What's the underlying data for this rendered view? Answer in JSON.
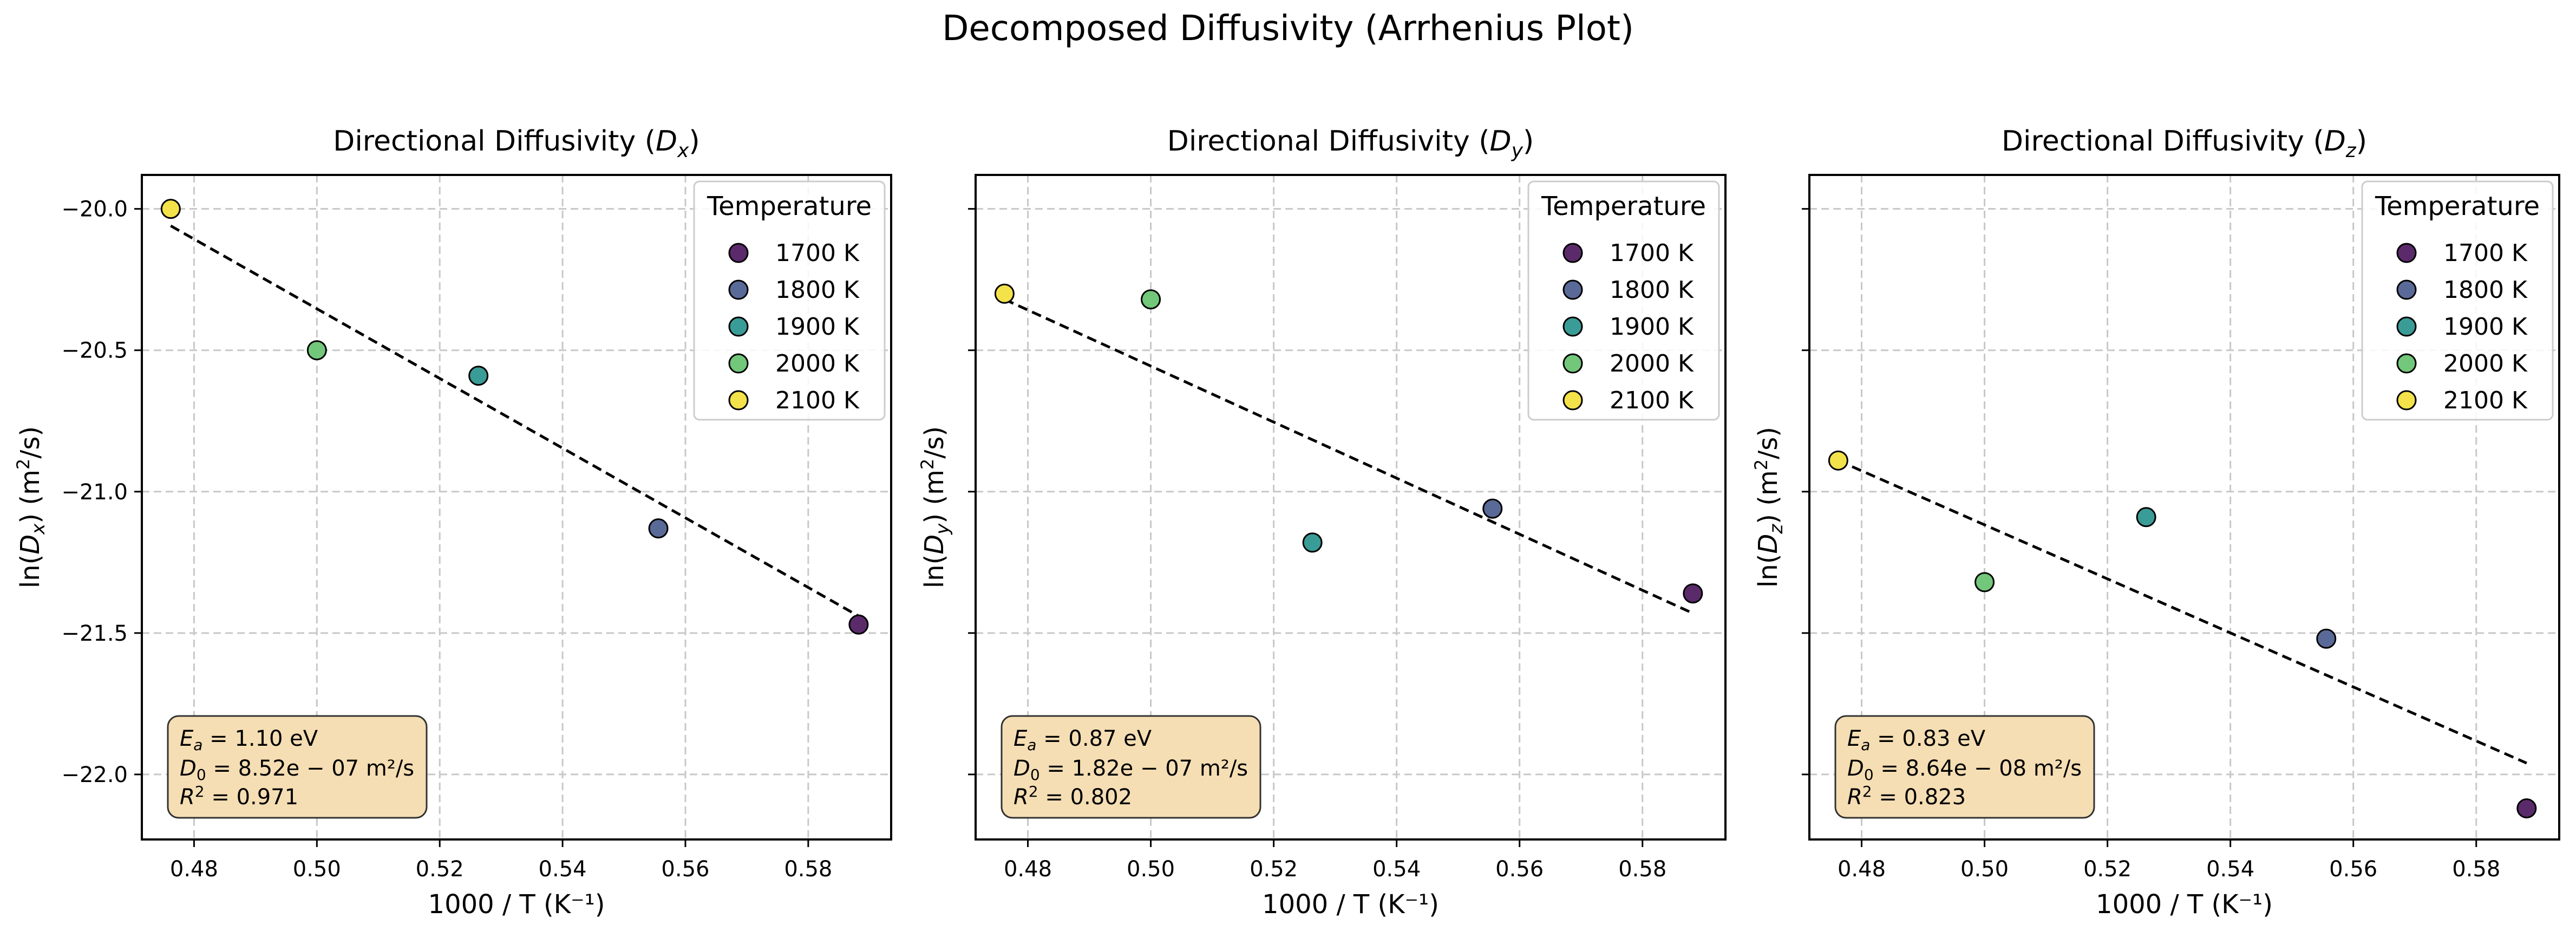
{
  "suptitle": "Decomposed Diffusivity (Arrhenius Plot)",
  "legend_title": "Temperature",
  "temperature_labels": [
    "1700 K",
    "1800 K",
    "1900 K",
    "2000 K",
    "2100 K"
  ],
  "colors": {
    "1700 K": "#5b2a6b",
    "1800 K": "#5a6a98",
    "1900 K": "#3a9c96",
    "2000 K": "#72c77a",
    "2100 K": "#f3e24a",
    "fit_line": "#000000",
    "textbox_fill": "#f5deb3",
    "grid": "#c8c8c8"
  },
  "chart_data": [
    {
      "type": "scatter",
      "title_prefix": "Directional Diffusivity (",
      "title_sym": "D",
      "title_sub": "x",
      "title_suffix": ")",
      "xlabel": "1000 / T (K⁻¹)",
      "ylabel_sub": "x",
      "ylabel_unit": "(m",
      "xlim": [
        0.4715,
        0.5935
      ],
      "ylim": [
        -22.23,
        -19.88
      ],
      "xticks": [
        0.48,
        0.5,
        0.52,
        0.54,
        0.56,
        0.58
      ],
      "xtick_labels": [
        "0.48",
        "0.50",
        "0.52",
        "0.54",
        "0.56",
        "0.58"
      ],
      "yticks": [
        -20.0,
        -20.5,
        -21.0,
        -21.5,
        -22.0
      ],
      "ytick_labels": [
        "−20.0",
        "−20.5",
        "−21.0",
        "−21.5",
        "−22.0"
      ],
      "show_ytick_labels": true,
      "grid": true,
      "legend_position": "top-right",
      "points": [
        {
          "label": "1700 K",
          "x": 0.5882,
          "y": -21.47
        },
        {
          "label": "1800 K",
          "x": 0.5556,
          "y": -21.13
        },
        {
          "label": "1900 K",
          "x": 0.5263,
          "y": -20.59
        },
        {
          "label": "2000 K",
          "x": 0.5,
          "y": -20.5
        },
        {
          "label": "2100 K",
          "x": 0.4762,
          "y": -20.0
        }
      ],
      "fit": {
        "x": [
          0.4762,
          0.5882
        ],
        "y": [
          -20.06,
          -21.44
        ]
      },
      "annotation": {
        "ea": "1.10 eV",
        "d0": "8.52e − 07 m²/s",
        "r2": "0.971"
      }
    },
    {
      "type": "scatter",
      "title_prefix": "Directional Diffusivity (",
      "title_sym": "D",
      "title_sub": "y",
      "title_suffix": ")",
      "xlabel": "1000 / T (K⁻¹)",
      "ylabel_sub": "y",
      "ylabel_unit": "(m",
      "xlim": [
        0.4715,
        0.5935
      ],
      "ylim": [
        -22.23,
        -19.88
      ],
      "xticks": [
        0.48,
        0.5,
        0.52,
        0.54,
        0.56,
        0.58
      ],
      "xtick_labels": [
        "0.48",
        "0.50",
        "0.52",
        "0.54",
        "0.56",
        "0.58"
      ],
      "yticks": [
        -20.0,
        -20.5,
        -21.0,
        -21.5,
        -22.0
      ],
      "ytick_labels": [
        "",
        "",
        "",
        "",
        ""
      ],
      "show_ytick_labels": false,
      "grid": true,
      "legend_position": "top-right",
      "points": [
        {
          "label": "1700 K",
          "x": 0.5882,
          "y": -21.36
        },
        {
          "label": "1800 K",
          "x": 0.5556,
          "y": -21.06
        },
        {
          "label": "1900 K",
          "x": 0.5263,
          "y": -21.18
        },
        {
          "label": "2000 K",
          "x": 0.5,
          "y": -20.32
        },
        {
          "label": "2100 K",
          "x": 0.4762,
          "y": -20.3
        }
      ],
      "fit": {
        "x": [
          0.4762,
          0.5882
        ],
        "y": [
          -20.32,
          -21.43
        ]
      },
      "annotation": {
        "ea": "0.87 eV",
        "d0": "1.82e − 07 m²/s",
        "r2": "0.802"
      }
    },
    {
      "type": "scatter",
      "title_prefix": "Directional Diffusivity (",
      "title_sym": "D",
      "title_sub": "z",
      "title_suffix": ")",
      "xlabel": "1000 / T (K⁻¹)",
      "ylabel_sub": "z",
      "ylabel_unit": "(m",
      "xlim": [
        0.4715,
        0.5935
      ],
      "ylim": [
        -22.23,
        -19.88
      ],
      "xticks": [
        0.48,
        0.5,
        0.52,
        0.54,
        0.56,
        0.58
      ],
      "xtick_labels": [
        "0.48",
        "0.50",
        "0.52",
        "0.54",
        "0.56",
        "0.58"
      ],
      "yticks": [
        -20.0,
        -20.5,
        -21.0,
        -21.5,
        -22.0
      ],
      "ytick_labels": [
        "",
        "",
        "",
        "",
        ""
      ],
      "show_ytick_labels": false,
      "grid": true,
      "legend_position": "top-right",
      "points": [
        {
          "label": "1700 K",
          "x": 0.5882,
          "y": -22.12
        },
        {
          "label": "1800 K",
          "x": 0.5556,
          "y": -21.52
        },
        {
          "label": "1900 K",
          "x": 0.5263,
          "y": -21.09
        },
        {
          "label": "2000 K",
          "x": 0.5,
          "y": -21.32
        },
        {
          "label": "2100 K",
          "x": 0.4762,
          "y": -20.89
        }
      ],
      "fit": {
        "x": [
          0.4762,
          0.5882
        ],
        "y": [
          -20.89,
          -21.96
        ]
      },
      "annotation": {
        "ea": "0.83 eV",
        "d0": "8.64e − 08 m²/s",
        "r2": "0.823"
      }
    }
  ]
}
